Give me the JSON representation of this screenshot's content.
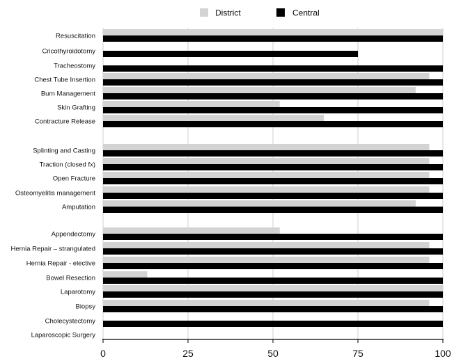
{
  "chart_data": {
    "type": "bar",
    "orientation": "horizontal",
    "title": "",
    "xlabel": "",
    "ylabel": "",
    "xlim": [
      0,
      100
    ],
    "xticks": [
      "0",
      "25",
      "50",
      "75",
      "100"
    ],
    "grid": true,
    "legend_position": "top",
    "categories": [
      "Resuscitation",
      "Cricothyroidotomy",
      "Tracheostomy",
      "Chest Tube Insertion",
      "Burn Management",
      "Skin Grafting",
      "Contracture Release",
      "Splinting and Casting",
      "Traction (closed fx)",
      "Open Fracture",
      "Osteomyelitis management",
      "Amputation",
      "Appendectomy",
      "Hernia Repair – strangulated",
      "Hernia Repair - elective",
      "Bowel Resection",
      "Laparotomy",
      "Biopsy",
      "Cholecystectomy",
      "Laparoscopic Surgery"
    ],
    "series": [
      {
        "name": "District",
        "color": "#d3d3d3",
        "values": [
          100,
          0,
          0,
          96,
          92,
          52,
          65,
          96,
          96,
          96,
          96,
          92,
          52,
          96,
          96,
          13,
          100,
          96,
          0,
          0
        ]
      },
      {
        "name": "Central",
        "color": "#000000",
        "values": [
          100,
          75,
          100,
          100,
          100,
          100,
          100,
          100,
          100,
          100,
          100,
          100,
          100,
          100,
          100,
          100,
          100,
          100,
          100,
          0
        ]
      }
    ]
  }
}
